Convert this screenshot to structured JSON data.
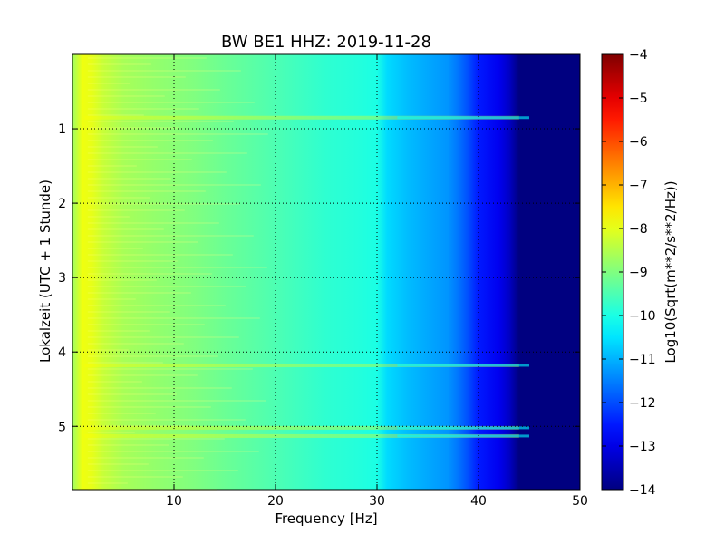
{
  "chart_data": {
    "type": "heatmap",
    "title": "BW BE1 HHZ: 2019-11-28",
    "xlabel": "Frequency [Hz]",
    "ylabel": "Lokalzeit (UTC + 1 Stunde)",
    "xlim": [
      0,
      50
    ],
    "ylim": [
      5.85,
      0
    ],
    "x_ticks": [
      10,
      20,
      30,
      40,
      50
    ],
    "y_ticks": [
      1,
      2,
      3,
      4,
      5
    ],
    "grid": true,
    "colormap": "jet",
    "colorbar": {
      "label": "Log10(Sqrt(m**2/s**2/Hz))",
      "range": [
        -14,
        -4
      ],
      "ticks": [
        -4,
        -5,
        -6,
        -7,
        -8,
        -9,
        -10,
        -11,
        -12,
        -13,
        -14
      ]
    },
    "spectrum_profile": {
      "frequency_hz": [
        0,
        1,
        2,
        3,
        5,
        8,
        10,
        12,
        15,
        20,
        25,
        28,
        30,
        31,
        33,
        35,
        37,
        38,
        39,
        40,
        42,
        43,
        44,
        46,
        50
      ],
      "log10_amplitude": [
        -8.7,
        -7.9,
        -8.0,
        -8.3,
        -8.6,
        -8.8,
        -8.9,
        -9.0,
        -9.2,
        -9.5,
        -9.8,
        -9.9,
        -10.0,
        -10.6,
        -10.9,
        -11.1,
        -11.3,
        -11.6,
        -12.0,
        -12.5,
        -12.9,
        -13.3,
        -14.0,
        -14.0,
        -14.0
      ]
    },
    "highlighted_times": [
      0.85,
      4.18,
      5.02,
      5.13
    ]
  }
}
